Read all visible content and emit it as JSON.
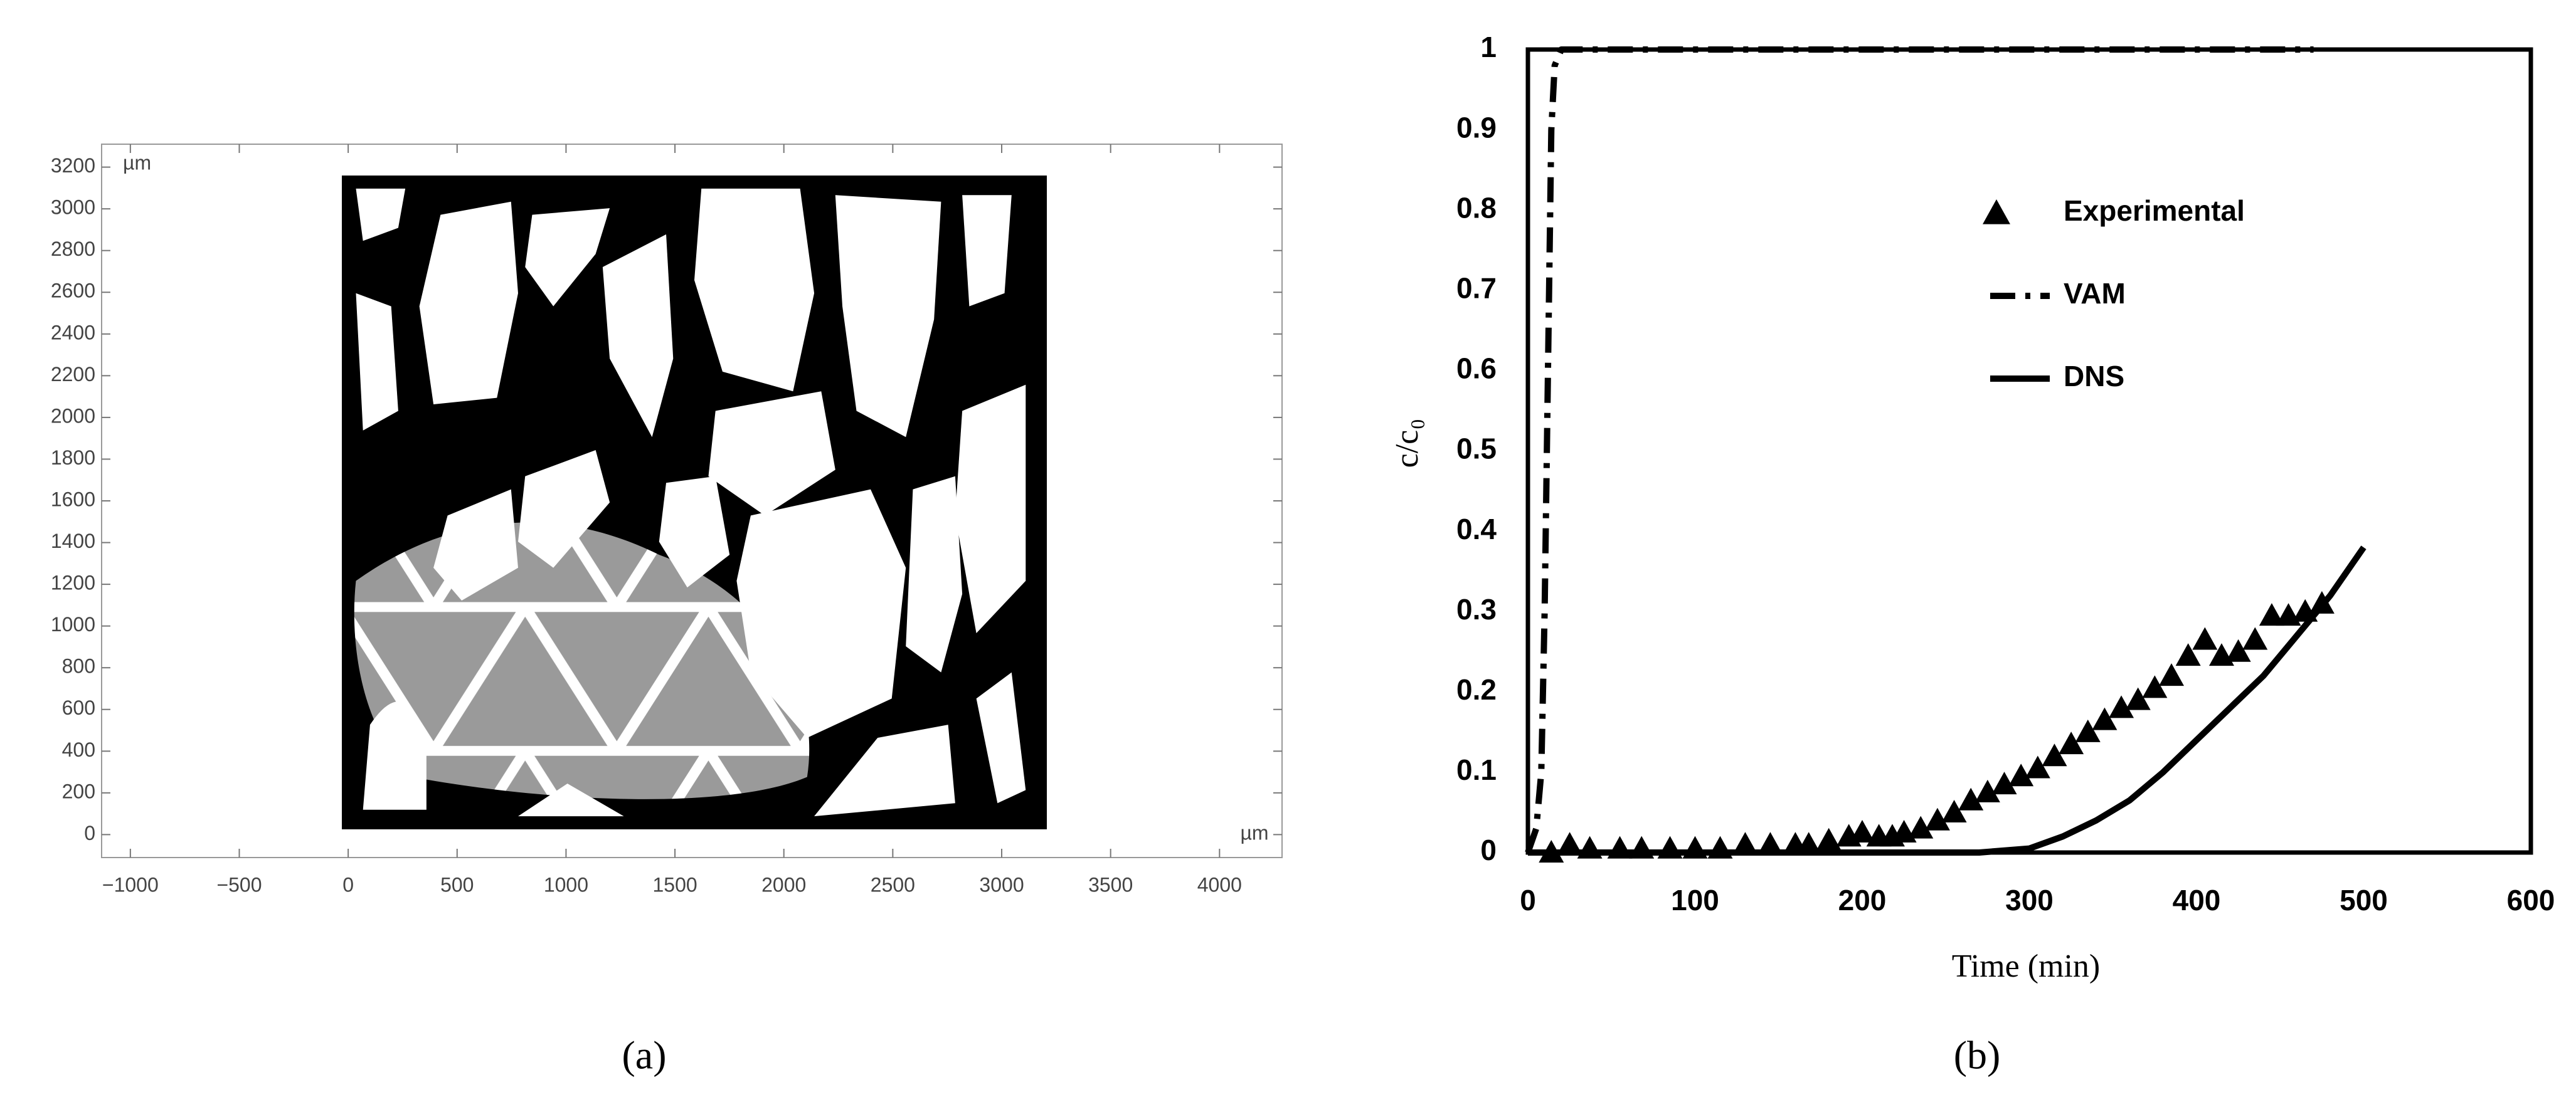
{
  "chart_data": [
    {
      "type": "image",
      "caption": "(a)",
      "x_unit": "µm",
      "y_unit": "µm",
      "xlim": [
        -1132,
        4287
      ],
      "ylim": [
        -110,
        3310
      ],
      "xticks": [
        {
          "value": -1000,
          "label": "−1000"
        },
        {
          "value": -500,
          "label": "−500"
        },
        0,
        500,
        1000,
        1500,
        2000,
        2500,
        3000,
        3500,
        4000
      ],
      "yticks": [
        0,
        200,
        400,
        600,
        800,
        1000,
        1200,
        1400,
        1600,
        1800,
        2000,
        2200,
        2400,
        2600,
        2800,
        3000,
        3200
      ]
    },
    {
      "type": "line",
      "caption": "(b)",
      "xlabel": "Time (min)",
      "ylabel": "c/c₀",
      "xlim": [
        0,
        600
      ],
      "ylim": [
        0,
        1
      ],
      "xticks": [
        0,
        100,
        200,
        300,
        400,
        500,
        600
      ],
      "yticks": [
        0,
        0.1,
        0.2,
        0.3,
        0.4,
        0.5,
        0.6,
        0.7,
        0.8,
        0.9,
        1
      ],
      "series": [
        {
          "name": "Experimental",
          "color": "#000000",
          "style": "triangle",
          "x": [
            14,
            25,
            37,
            55,
            68,
            85,
            100,
            115,
            130,
            145,
            160,
            168,
            180,
            192,
            200,
            210,
            218,
            225,
            235,
            245,
            255,
            265,
            275,
            285,
            295,
            305,
            315,
            325,
            335,
            345,
            355,
            365,
            375,
            385,
            395,
            405,
            415,
            425,
            435,
            445,
            455,
            465,
            475
          ],
          "values": [
            0,
            0.01,
            0.005,
            0.005,
            0.005,
            0.005,
            0.005,
            0.005,
            0.01,
            0.01,
            0.01,
            0.01,
            0.015,
            0.02,
            0.025,
            0.02,
            0.02,
            0.025,
            0.03,
            0.04,
            0.05,
            0.065,
            0.075,
            0.085,
            0.095,
            0.105,
            0.12,
            0.135,
            0.15,
            0.165,
            0.18,
            0.19,
            0.205,
            0.22,
            0.245,
            0.265,
            0.245,
            0.25,
            0.265,
            0.295,
            0.295,
            0.3,
            0.31
          ]
        },
        {
          "name": "VAM",
          "color": "#000000",
          "style": "dashdot",
          "x": [
            0,
            5,
            8,
            10,
            12,
            14,
            16,
            20,
            100,
            200,
            300,
            400,
            470
          ],
          "values": [
            0,
            0.03,
            0.1,
            0.3,
            0.6,
            0.9,
            0.98,
            1,
            1,
            1,
            1,
            1,
            1
          ]
        },
        {
          "name": "DNS",
          "color": "#000000",
          "style": "solid",
          "x": [
            0,
            100,
            200,
            270,
            300,
            320,
            340,
            360,
            380,
            400,
            420,
            440,
            460,
            480,
            500
          ],
          "values": [
            0,
            0,
            0,
            0,
            0.005,
            0.02,
            0.04,
            0.065,
            0.1,
            0.14,
            0.18,
            0.22,
            0.27,
            0.32,
            0.38
          ]
        }
      ]
    }
  ]
}
